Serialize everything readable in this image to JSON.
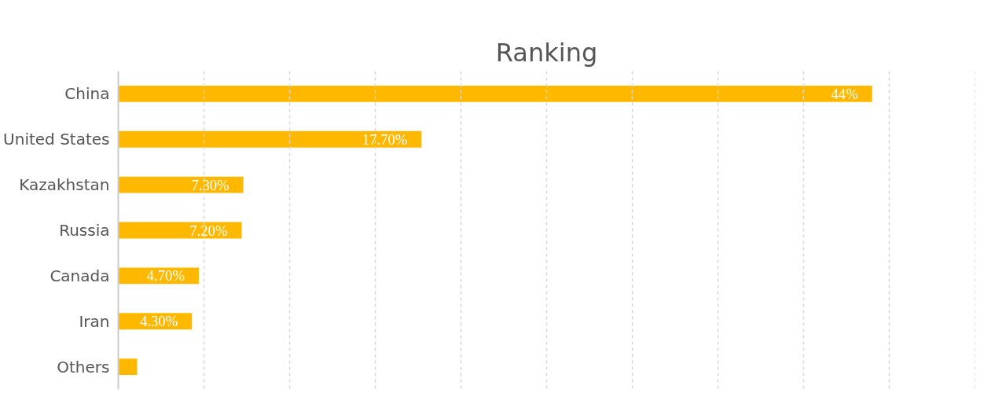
{
  "chart_data": {
    "type": "bar",
    "title": "Ranking",
    "orientation": "horizontal",
    "categories": [
      "China",
      "United States",
      "Kazakhstan",
      "Russia",
      "Canada",
      "Iran",
      "Others"
    ],
    "values": [
      44,
      17.7,
      7.3,
      7.2,
      4.7,
      4.3,
      1.1
    ],
    "value_labels": [
      "44%",
      "17.70%",
      "7.30%",
      "7.20%",
      "4.70%",
      "4.30%",
      null
    ],
    "color": "#ffb800",
    "xlim": [
      0,
      50
    ],
    "xticks": [
      {
        "value": 0,
        "label": null
      },
      {
        "value": 5,
        "label": null
      },
      {
        "value": 10,
        "label": null
      },
      {
        "value": 15,
        "label": null
      },
      {
        "value": 20,
        "label": null
      },
      {
        "value": 25,
        "label": null
      },
      {
        "value": 30,
        "label": null
      },
      {
        "value": 35,
        "label": null
      },
      {
        "value": 40,
        "label": null
      },
      {
        "value": 45,
        "label": null
      },
      {
        "value": 50,
        "label": null
      }
    ],
    "tick_labels": "y",
    "grid": "x"
  }
}
